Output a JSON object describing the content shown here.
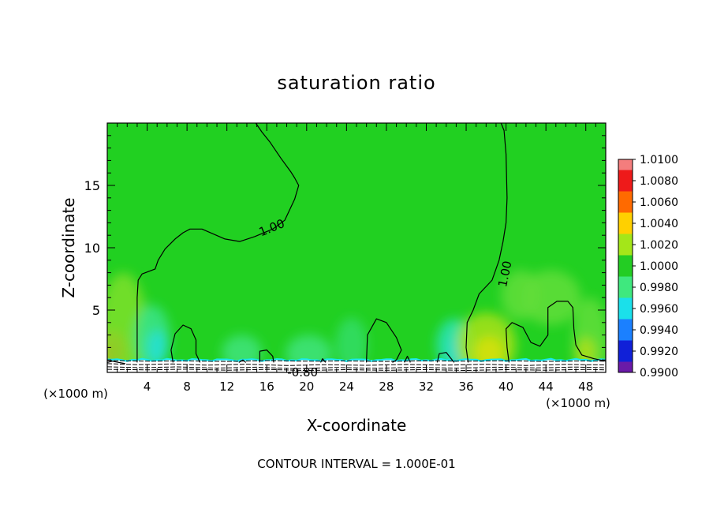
{
  "chart_data": {
    "type": "heatmap",
    "title": "saturation ratio",
    "xlabel": "X-coordinate",
    "ylabel": "Z-coordinate",
    "x_unit_left": "(×1000 m)",
    "x_unit_right": "(×1000 m)",
    "xlim": [
      0,
      50
    ],
    "ylim": [
      0,
      20
    ],
    "x_ticks": [
      4,
      8,
      12,
      16,
      20,
      24,
      28,
      32,
      36,
      40,
      44,
      48
    ],
    "y_ticks": [
      5,
      10,
      15
    ],
    "footer": "CONTOUR INTERVAL = 1.000E-01",
    "contour_labels": [
      {
        "text": "1.00",
        "x": 16.5,
        "y": 11.6,
        "rotate": -22
      },
      {
        "text": "1.00",
        "x": 39.9,
        "y": 7.9,
        "rotate": -78
      },
      {
        "text": "-0.80",
        "x": 19.6,
        "y": 0.0,
        "rotate": 0
      }
    ],
    "colorbar": {
      "values": [
        "1.0100",
        "1.0080",
        "1.0060",
        "1.0040",
        "1.0020",
        "1.0000",
        "0.9980",
        "0.9960",
        "0.9940",
        "0.9920",
        "0.9900"
      ],
      "colors": [
        "#f47d7d",
        "#ee1a1a",
        "#ff6a00",
        "#ffd000",
        "#a4e619",
        "#23cd23",
        "#3fe87e",
        "#1be0ea",
        "#1b80ff",
        "#1020d8",
        "#6a1aa8"
      ]
    },
    "field": {
      "background_color": "#21d021",
      "patches": [
        {
          "cx": 0.5,
          "cz": 1.8,
          "rx": 1.5,
          "rz": 1.6,
          "color": "#ff7a00"
        },
        {
          "cx": 0.6,
          "cz": 1.6,
          "rx": 0.6,
          "rz": 0.9,
          "color": "#e84010"
        },
        {
          "cx": 1.6,
          "cz": 3.5,
          "rx": 2.4,
          "rz": 4.5,
          "color": "#7ee02a"
        },
        {
          "cx": 4.5,
          "cz": 2.8,
          "rx": 1.8,
          "rz": 2.6,
          "color": "#3ae48a"
        },
        {
          "cx": 5.0,
          "cz": 2.0,
          "rx": 1.0,
          "rz": 1.4,
          "color": "#22e0d8"
        },
        {
          "cx": 13.5,
          "cz": 1.6,
          "rx": 2.0,
          "rz": 1.4,
          "color": "#3ee47c"
        },
        {
          "cx": 20.2,
          "cz": 1.5,
          "rx": 2.3,
          "rz": 1.5,
          "color": "#3ee47c"
        },
        {
          "cx": 24.5,
          "cz": 2.2,
          "rx": 1.6,
          "rz": 2.2,
          "color": "#33dd66"
        },
        {
          "cx": 34.8,
          "cz": 2.2,
          "rx": 1.8,
          "rz": 2.1,
          "color": "#2ae4b4"
        },
        {
          "cx": 35.0,
          "cz": 1.8,
          "rx": 0.8,
          "rz": 1.2,
          "color": "#22dcd6"
        },
        {
          "cx": 38.0,
          "cz": 2.2,
          "rx": 3.0,
          "rz": 2.6,
          "color": "#a8e21a"
        },
        {
          "cx": 38.3,
          "cz": 1.6,
          "rx": 1.5,
          "rz": 1.3,
          "color": "#d8e010"
        },
        {
          "cx": 41.5,
          "cz": 6.2,
          "rx": 2.0,
          "rz": 2.0,
          "color": "#62de3a"
        },
        {
          "cx": 44.5,
          "cz": 6.0,
          "rx": 3.0,
          "rz": 2.2,
          "color": "#62de3a"
        },
        {
          "cx": 48.5,
          "cz": 2.5,
          "rx": 1.8,
          "rz": 3.5,
          "color": "#62de3a"
        },
        {
          "cx": 48.0,
          "cz": 1.6,
          "rx": 1.0,
          "rz": 1.2,
          "color": "#aee018"
        }
      ],
      "contours_1_00": [
        [
          [
            14.9,
            20.0
          ],
          [
            15.5,
            19.3
          ],
          [
            16.3,
            18.5
          ],
          [
            17.4,
            17.2
          ],
          [
            18.4,
            16.1
          ],
          [
            18.8,
            15.6
          ],
          [
            19.2,
            15.0
          ],
          [
            18.8,
            13.9
          ],
          [
            17.8,
            12.2
          ],
          [
            16.6,
            11.5
          ],
          [
            14.8,
            10.9
          ],
          [
            13.3,
            10.5
          ],
          [
            11.8,
            10.7
          ],
          [
            9.5,
            11.5
          ],
          [
            8.3,
            11.5
          ],
          [
            7.6,
            11.2
          ],
          [
            6.8,
            10.7
          ],
          [
            5.8,
            9.9
          ],
          [
            5.1,
            9.0
          ],
          [
            4.8,
            8.3
          ],
          [
            3.5,
            7.9
          ],
          [
            3.1,
            7.4
          ],
          [
            3.0,
            6.0
          ],
          [
            3.0,
            3.0
          ],
          [
            3.0,
            0.8
          ]
        ],
        [
          [
            39.5,
            20.0
          ],
          [
            39.8,
            19.4
          ],
          [
            40.0,
            17.5
          ],
          [
            40.1,
            14.0
          ],
          [
            40.0,
            12.0
          ],
          [
            39.7,
            10.5
          ],
          [
            39.3,
            9.0
          ],
          [
            38.6,
            7.4
          ],
          [
            37.3,
            6.3
          ],
          [
            36.7,
            5.0
          ],
          [
            36.1,
            4.0
          ],
          [
            36.0,
            2.0
          ],
          [
            36.2,
            0.8
          ]
        ],
        [
          [
            6.6,
            0.8
          ],
          [
            6.4,
            1.8
          ],
          [
            6.8,
            3.1
          ],
          [
            7.6,
            3.8
          ],
          [
            8.4,
            3.5
          ],
          [
            8.9,
            2.6
          ],
          [
            8.9,
            1.5
          ],
          [
            9.3,
            0.8
          ]
        ],
        [
          [
            15.3,
            0.8
          ],
          [
            15.3,
            1.7
          ],
          [
            16.0,
            1.8
          ],
          [
            16.6,
            1.3
          ],
          [
            16.7,
            0.8
          ]
        ],
        [
          [
            26.0,
            0.8
          ],
          [
            26.1,
            3.0
          ],
          [
            27.0,
            4.3
          ],
          [
            28.0,
            4.0
          ],
          [
            29.0,
            2.8
          ],
          [
            29.5,
            1.8
          ],
          [
            29.0,
            1.0
          ],
          [
            28.6,
            0.8
          ]
        ],
        [
          [
            33.1,
            0.8
          ],
          [
            33.3,
            1.5
          ],
          [
            34.0,
            1.6
          ],
          [
            34.6,
            1.0
          ],
          [
            34.8,
            0.8
          ]
        ],
        [
          [
            40.3,
            0.8
          ],
          [
            40.1,
            2.0
          ],
          [
            40.0,
            3.5
          ],
          [
            40.6,
            4.0
          ],
          [
            41.7,
            3.6
          ],
          [
            42.5,
            2.4
          ],
          [
            43.4,
            2.1
          ],
          [
            44.2,
            3.0
          ],
          [
            44.2,
            5.2
          ],
          [
            45.1,
            5.7
          ],
          [
            46.2,
            5.7
          ],
          [
            46.7,
            5.2
          ],
          [
            46.8,
            3.5
          ],
          [
            47.0,
            2.2
          ],
          [
            47.6,
            1.4
          ],
          [
            48.8,
            1.1
          ],
          [
            50.0,
            0.9
          ]
        ],
        [
          [
            0.0,
            0.8
          ],
          [
            0.5,
            0.9
          ],
          [
            1.8,
            0.7
          ]
        ],
        [
          [
            29.8,
            0.8
          ],
          [
            30.1,
            1.3
          ],
          [
            30.4,
            0.8
          ]
        ],
        [
          [
            13.2,
            0.8
          ],
          [
            13.6,
            1.0
          ],
          [
            13.9,
            0.8
          ]
        ],
        [
          [
            21.4,
            0.8
          ],
          [
            21.6,
            1.1
          ],
          [
            21.9,
            0.8
          ]
        ]
      ],
      "negative_contours": [
        [
          [
            0.0,
            0.95
          ],
          [
            4.0,
            0.9
          ],
          [
            8.0,
            0.92
          ],
          [
            12.0,
            0.88
          ],
          [
            16.0,
            0.94
          ],
          [
            20.0,
            0.9
          ],
          [
            24.0,
            0.92
          ],
          [
            28.0,
            0.88
          ],
          [
            32.0,
            0.93
          ],
          [
            36.0,
            0.9
          ],
          [
            40.0,
            0.93
          ],
          [
            44.0,
            0.88
          ],
          [
            48.0,
            0.92
          ],
          [
            50.0,
            0.9
          ]
        ],
        [
          [
            0.0,
            0.7
          ],
          [
            3.0,
            0.62
          ],
          [
            6.5,
            0.68
          ],
          [
            10.0,
            0.58
          ],
          [
            14.0,
            0.66
          ],
          [
            18.0,
            0.55
          ],
          [
            22.0,
            0.62
          ],
          [
            26.0,
            0.57
          ],
          [
            30.0,
            0.64
          ],
          [
            34.0,
            0.58
          ],
          [
            38.0,
            0.65
          ],
          [
            42.0,
            0.56
          ],
          [
            46.0,
            0.64
          ],
          [
            50.0,
            0.6
          ]
        ],
        [
          [
            0.0,
            0.45
          ],
          [
            3.5,
            0.38
          ],
          [
            7.0,
            0.44
          ],
          [
            11.0,
            0.35
          ],
          [
            15.0,
            0.42
          ],
          [
            19.0,
            0.3
          ],
          [
            23.0,
            0.4
          ],
          [
            27.0,
            0.33
          ],
          [
            31.0,
            0.41
          ],
          [
            35.0,
            0.34
          ],
          [
            39.0,
            0.42
          ],
          [
            43.0,
            0.36
          ],
          [
            47.0,
            0.43
          ],
          [
            50.0,
            0.38
          ]
        ],
        [
          [
            0.0,
            0.25
          ],
          [
            4.0,
            0.2
          ],
          [
            8.0,
            0.26
          ],
          [
            12.0,
            0.18
          ],
          [
            16.0,
            0.24
          ],
          [
            20.0,
            0.15
          ],
          [
            24.0,
            0.22
          ],
          [
            28.0,
            0.17
          ],
          [
            32.0,
            0.23
          ],
          [
            36.0,
            0.16
          ],
          [
            40.0,
            0.22
          ],
          [
            44.0,
            0.18
          ],
          [
            48.0,
            0.24
          ],
          [
            50.0,
            0.2
          ]
        ]
      ]
    }
  }
}
